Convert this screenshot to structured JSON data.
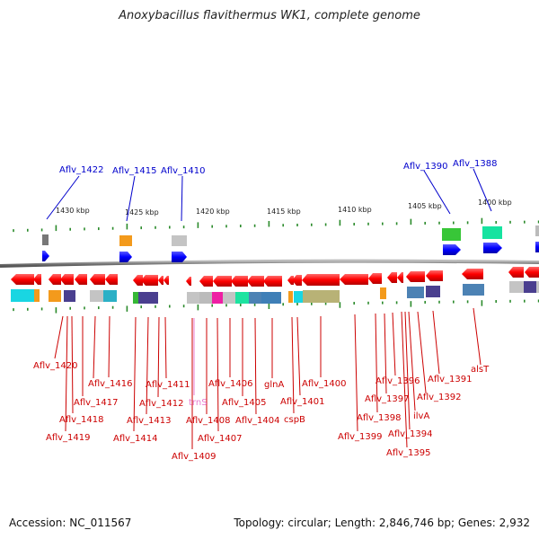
{
  "title": "Anoxybacillus flavithermus WK1, complete genome",
  "footer": {
    "accession": "Accession: NC_011567",
    "stats": "Topology: circular; Length: 2,846,746 bp; Genes: 2,932"
  },
  "colors": {
    "forward_gene": "#ff0000",
    "reverse_gene": "#ff0000",
    "forward_label": "#0000cc",
    "reverse_label": "#cc0000",
    "trna_label": "#e87ad0",
    "backbone": "#7f7f7f",
    "tick": "#2a8a2a"
  },
  "scale_labels": [
    "1430 kbp",
    "1425 kbp",
    "1420 kbp",
    "1415 kbp",
    "1410 kbp",
    "1405 kbp",
    "1400 kbp"
  ],
  "forward_labels": [
    "Aflv_1422",
    "Aflv_1415",
    "Aflv_1410",
    "Aflv_1390",
    "Aflv_1388"
  ],
  "reverse_labels": [
    "Aflv_1420",
    "Aflv_1419",
    "Aflv_1418",
    "Aflv_1417",
    "Aflv_1416",
    "Aflv_1414",
    "Aflv_1413",
    "Aflv_1412",
    "Aflv_1411",
    "trnS",
    "Aflv_1409",
    "Aflv_1408",
    "Aflv_1407",
    "Aflv_1406",
    "Aflv_1405",
    "Aflv_1404",
    "glnA",
    "cspB",
    "Aflv_1401",
    "Aflv_1400",
    "Aflv_1399",
    "Aflv_1398",
    "Aflv_1397",
    "Aflv_1396",
    "Aflv_1395",
    "Aflv_1394",
    "ilvA",
    "Aflv_1392",
    "Aflv_1391",
    "alsT"
  ]
}
